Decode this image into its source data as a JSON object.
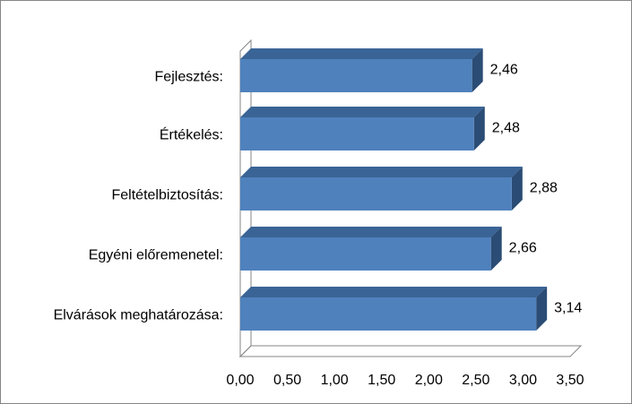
{
  "chart_data": {
    "type": "bar",
    "orientation": "horizontal",
    "style": "3d",
    "categories": [
      "Fejlesztés:",
      "Értékelés:",
      "Feltételbiztosítás:",
      "Egyéni előremenetel:",
      "Elvárások meghatározása:"
    ],
    "values": [
      2.46,
      2.48,
      2.88,
      2.66,
      3.14
    ],
    "value_labels": [
      "2,46",
      "2,48",
      "2,88",
      "2,66",
      "3,14"
    ],
    "xlim": [
      0,
      3.5
    ],
    "x_ticks": [
      {
        "value": 0.0,
        "label": "0,00"
      },
      {
        "value": 0.5,
        "label": "0,50"
      },
      {
        "value": 1.0,
        "label": "1,00"
      },
      {
        "value": 1.5,
        "label": "1,50"
      },
      {
        "value": 2.0,
        "label": "2,00"
      },
      {
        "value": 2.5,
        "label": "2,50"
      },
      {
        "value": 3.0,
        "label": "3,00"
      },
      {
        "value": 3.5,
        "label": "3,50"
      }
    ],
    "grid": false,
    "legend": "none",
    "colors": {
      "bar_front": "#4F81BD",
      "bar_top": "#3A6496",
      "bar_side": "#2B4C74",
      "axis": "#868686"
    }
  }
}
